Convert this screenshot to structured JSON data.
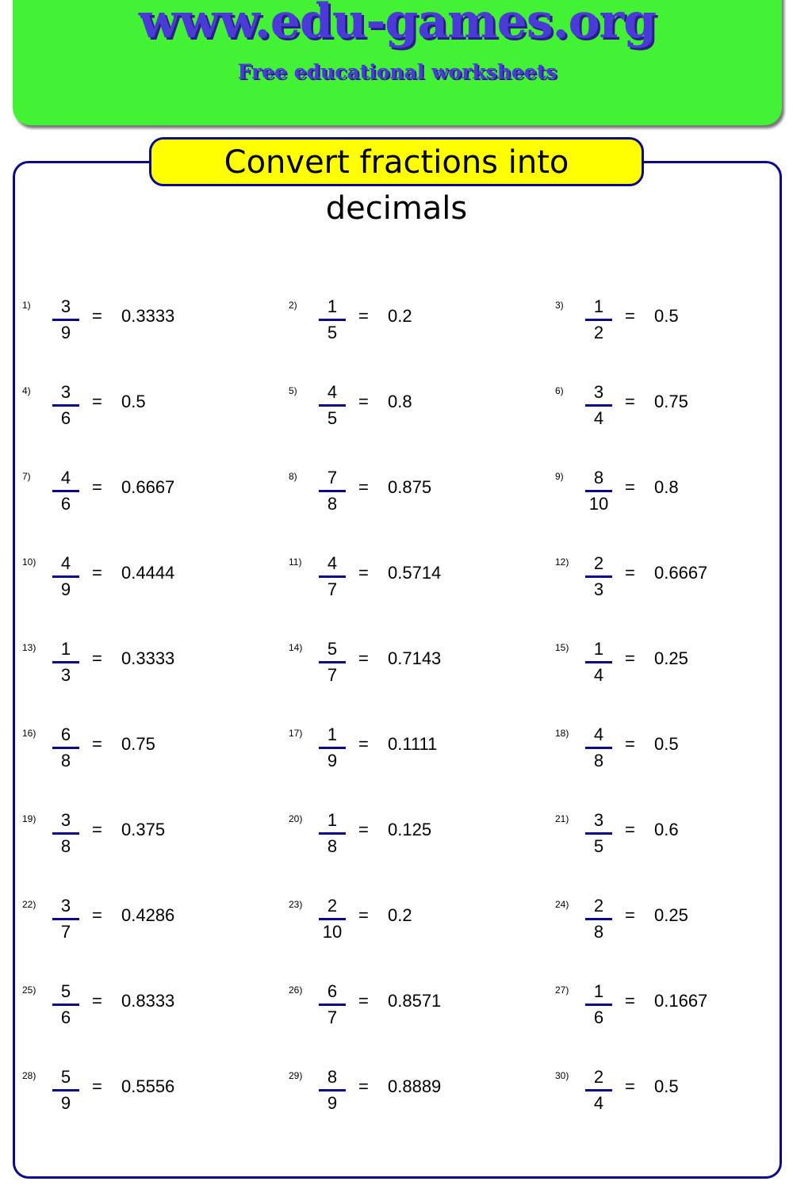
{
  "header": {
    "site": "www.edu-games.org",
    "tagline": "Free educational worksheets",
    "brand_color": "#44f235",
    "text_color": "#4a3bd8"
  },
  "worksheet": {
    "title": "Convert fractions into decimals",
    "equals": "=",
    "problems": [
      {
        "label": "1)",
        "n": "3",
        "d": "9",
        "v": "0.3333"
      },
      {
        "label": "2)",
        "n": "1",
        "d": "5",
        "v": "0.2"
      },
      {
        "label": "3)",
        "n": "1",
        "d": "2",
        "v": "0.5"
      },
      {
        "label": "4)",
        "n": "3",
        "d": "6",
        "v": "0.5"
      },
      {
        "label": "5)",
        "n": "4",
        "d": "5",
        "v": "0.8"
      },
      {
        "label": "6)",
        "n": "3",
        "d": "4",
        "v": "0.75"
      },
      {
        "label": "7)",
        "n": "4",
        "d": "6",
        "v": "0.6667"
      },
      {
        "label": "8)",
        "n": "7",
        "d": "8",
        "v": "0.875"
      },
      {
        "label": "9)",
        "n": "8",
        "d": "10",
        "v": "0.8"
      },
      {
        "label": "10)",
        "n": "4",
        "d": "9",
        "v": "0.4444"
      },
      {
        "label": "11)",
        "n": "4",
        "d": "7",
        "v": "0.5714"
      },
      {
        "label": "12)",
        "n": "2",
        "d": "3",
        "v": "0.6667"
      },
      {
        "label": "13)",
        "n": "1",
        "d": "3",
        "v": "0.3333"
      },
      {
        "label": "14)",
        "n": "5",
        "d": "7",
        "v": "0.7143"
      },
      {
        "label": "15)",
        "n": "1",
        "d": "4",
        "v": "0.25"
      },
      {
        "label": "16)",
        "n": "6",
        "d": "8",
        "v": "0.75"
      },
      {
        "label": "17)",
        "n": "1",
        "d": "9",
        "v": "0.1111"
      },
      {
        "label": "18)",
        "n": "4",
        "d": "8",
        "v": "0.5"
      },
      {
        "label": "19)",
        "n": "3",
        "d": "8",
        "v": "0.375"
      },
      {
        "label": "20)",
        "n": "1",
        "d": "8",
        "v": "0.125"
      },
      {
        "label": "21)",
        "n": "3",
        "d": "5",
        "v": "0.6"
      },
      {
        "label": "22)",
        "n": "3",
        "d": "7",
        "v": "0.4286"
      },
      {
        "label": "23)",
        "n": "2",
        "d": "10",
        "v": "0.2"
      },
      {
        "label": "24)",
        "n": "2",
        "d": "8",
        "v": "0.25"
      },
      {
        "label": "25)",
        "n": "5",
        "d": "6",
        "v": "0.8333"
      },
      {
        "label": "26)",
        "n": "6",
        "d": "7",
        "v": "0.8571"
      },
      {
        "label": "27)",
        "n": "1",
        "d": "6",
        "v": "0.1667"
      },
      {
        "label": "28)",
        "n": "5",
        "d": "9",
        "v": "0.5556"
      },
      {
        "label": "29)",
        "n": "8",
        "d": "9",
        "v": "0.8889"
      },
      {
        "label": "30)",
        "n": "2",
        "d": "4",
        "v": "0.5"
      }
    ]
  }
}
